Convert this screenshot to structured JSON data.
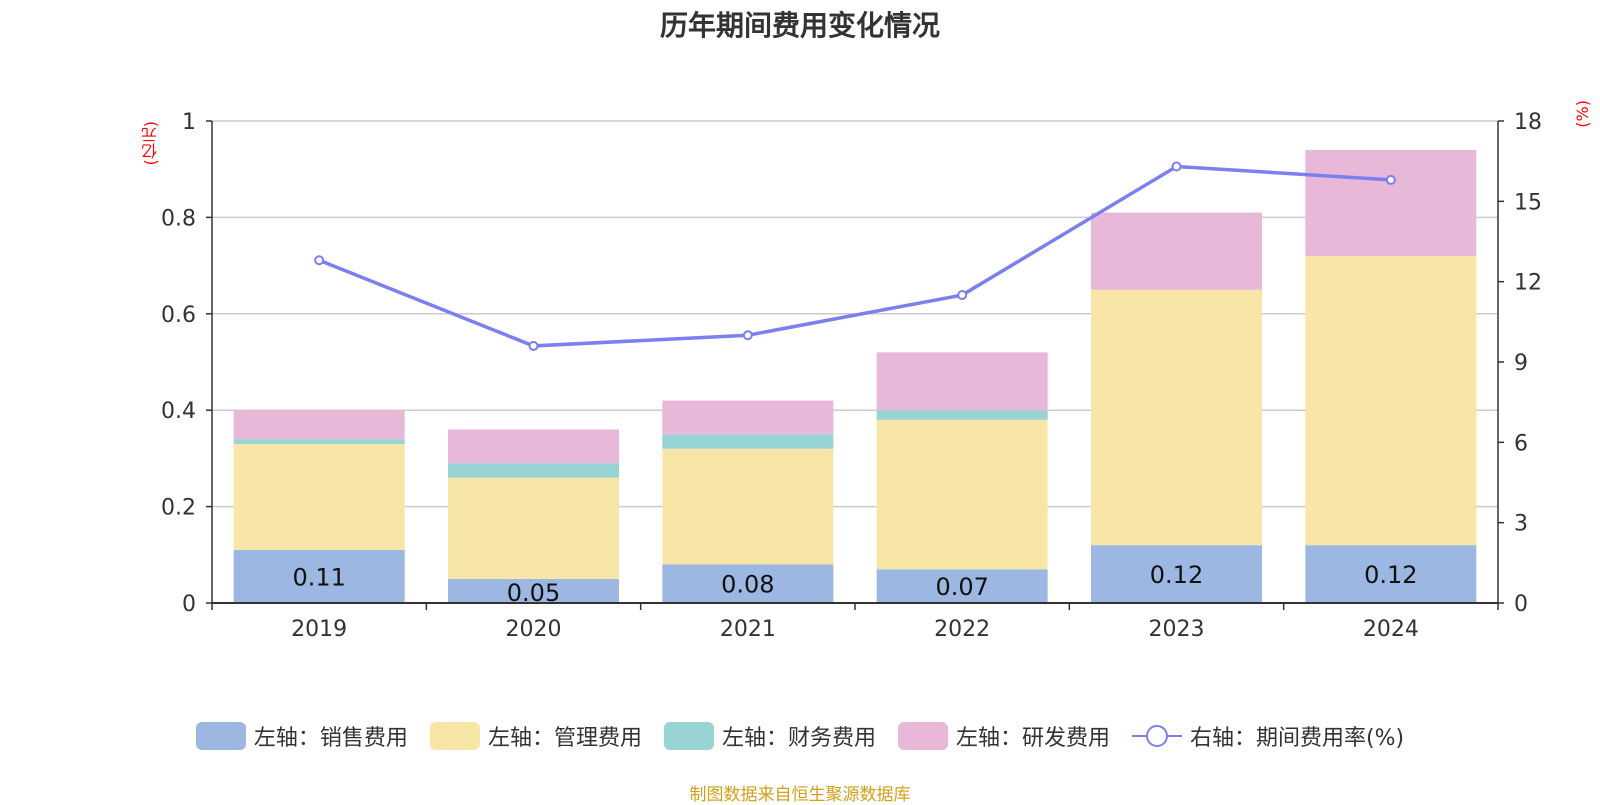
{
  "chart_data": {
    "type": "bar",
    "title": "历年期间费用变化情况",
    "categories": [
      "2019",
      "2020",
      "2021",
      "2022",
      "2023",
      "2024"
    ],
    "left_axis": {
      "unit": "(亿元)",
      "ylim": [
        0,
        1
      ],
      "ticks": [
        "0",
        "0.2",
        "0.4",
        "0.6",
        "0.8",
        "1"
      ]
    },
    "right_axis": {
      "unit": "(%)",
      "ylim": [
        0,
        18
      ],
      "ticks": [
        "0",
        "3",
        "6",
        "9",
        "12",
        "15",
        "18"
      ]
    },
    "series": [
      {
        "name": "左轴：销售费用",
        "axis": "left",
        "stack": true,
        "color": "#9cb8e2",
        "values": [
          0.11,
          0.05,
          0.08,
          0.07,
          0.12,
          0.12
        ],
        "labels": [
          "0.11",
          "0.05",
          "0.08",
          "0.07",
          "0.12",
          "0.12"
        ]
      },
      {
        "name": "左轴：管理费用",
        "axis": "left",
        "stack": true,
        "color": "#f7e6a6",
        "values": [
          0.22,
          0.21,
          0.24,
          0.31,
          0.53,
          0.6
        ]
      },
      {
        "name": "左轴：财务费用",
        "axis": "left",
        "stack": true,
        "color": "#98d4d4",
        "values": [
          0.01,
          0.03,
          0.03,
          0.02,
          0.0,
          0.0
        ]
      },
      {
        "name": "左轴：研发费用",
        "axis": "left",
        "stack": true,
        "color": "#e8b8d8",
        "values": [
          0.06,
          0.07,
          0.07,
          0.12,
          0.16,
          0.22
        ]
      },
      {
        "name": "右轴：期间费用率(%)",
        "axis": "right",
        "type": "line",
        "color": "#7b7ff0",
        "values": [
          12.8,
          9.6,
          10.0,
          11.5,
          16.3,
          15.8
        ]
      }
    ],
    "grid": true,
    "legend_position": "bottom"
  },
  "source_note": "制图数据来自恒生聚源数据库"
}
